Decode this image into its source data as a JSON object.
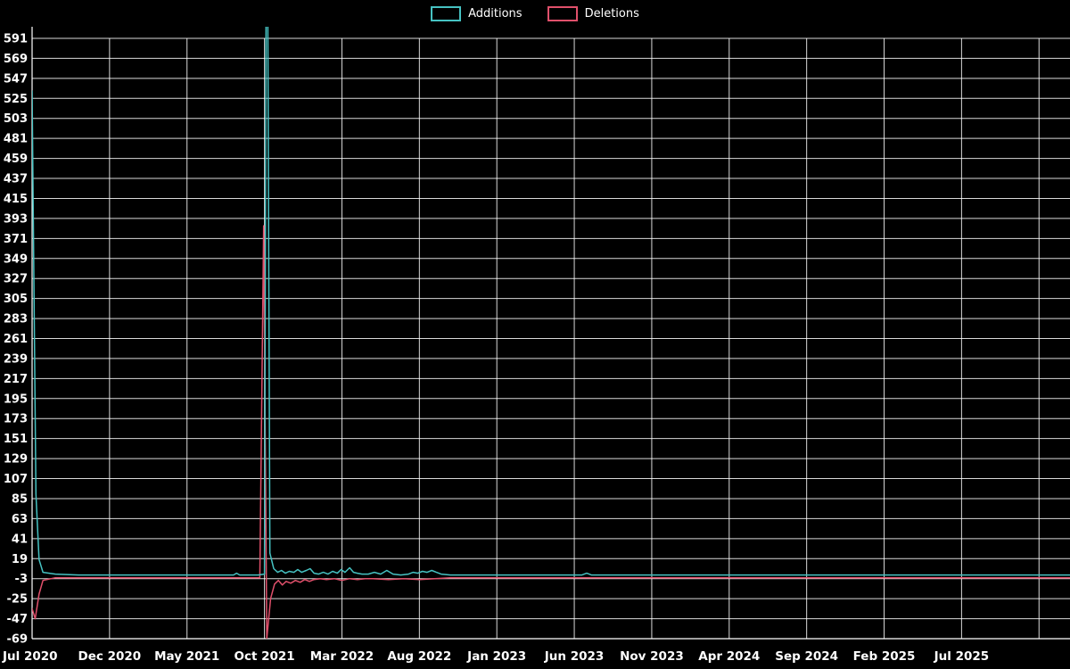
{
  "legend": {
    "additions_label": "Additions",
    "deletions_label": "Deletions"
  },
  "colors": {
    "background": "#000000",
    "grid": "#ffffff",
    "text": "#ffffff",
    "additions": "#46c2c2",
    "deletions": "#e0506b"
  },
  "chart_data": {
    "type": "line",
    "title": "",
    "xlabel": "",
    "ylabel": "",
    "legend_position": "top-center",
    "grid": true,
    "ylim": [
      -69,
      591
    ],
    "y_tick_step": 22,
    "y_ticks": [
      591,
      569,
      547,
      525,
      503,
      481,
      459,
      437,
      415,
      393,
      371,
      349,
      327,
      305,
      283,
      261,
      239,
      217,
      195,
      173,
      151,
      129,
      107,
      85,
      63,
      41,
      19,
      -3,
      -25,
      -47,
      -69
    ],
    "x_tick_labels": [
      "Jul 2020",
      "Dec 2020",
      "May 2021",
      "Oct 2021",
      "Mar 2022",
      "Aug 2022",
      "Jan 2023",
      "Jun 2023",
      "Nov 2023",
      "Apr 2024",
      "Sep 2024",
      "Feb 2025",
      "Jul 2025"
    ],
    "x_months_per_tick": 5,
    "xlim_months": [
      0,
      67
    ],
    "series": [
      {
        "name": "Additions",
        "color": "#46c2c2",
        "points": [
          [
            0,
            533
          ],
          [
            0.25,
            90
          ],
          [
            0.45,
            18
          ],
          [
            0.7,
            4
          ],
          [
            1.5,
            2
          ],
          [
            3,
            1
          ],
          [
            6,
            1
          ],
          [
            9,
            1
          ],
          [
            12,
            1
          ],
          [
            13,
            1
          ],
          [
            13.2,
            3
          ],
          [
            13.4,
            1
          ],
          [
            14.6,
            1
          ],
          [
            15,
            2
          ],
          [
            15.15,
            900
          ],
          [
            15.35,
            25
          ],
          [
            15.6,
            8
          ],
          [
            15.85,
            4
          ],
          [
            16.1,
            6
          ],
          [
            16.35,
            3
          ],
          [
            16.6,
            5
          ],
          [
            16.9,
            4
          ],
          [
            17.15,
            7
          ],
          [
            17.4,
            4
          ],
          [
            17.7,
            6
          ],
          [
            17.95,
            8
          ],
          [
            18.2,
            3
          ],
          [
            18.5,
            2
          ],
          [
            18.8,
            4
          ],
          [
            19.1,
            2
          ],
          [
            19.4,
            5
          ],
          [
            19.7,
            3
          ],
          [
            19.95,
            7
          ],
          [
            20.2,
            4
          ],
          [
            20.5,
            9
          ],
          [
            20.75,
            4
          ],
          [
            21,
            3
          ],
          [
            21.3,
            2
          ],
          [
            21.7,
            2
          ],
          [
            22.1,
            4
          ],
          [
            22.5,
            2
          ],
          [
            22.9,
            6
          ],
          [
            23.3,
            2
          ],
          [
            23.8,
            1
          ],
          [
            24.3,
            2
          ],
          [
            24.6,
            4
          ],
          [
            24.9,
            3
          ],
          [
            25.2,
            5
          ],
          [
            25.5,
            4
          ],
          [
            25.8,
            6
          ],
          [
            26.1,
            4
          ],
          [
            26.4,
            2
          ],
          [
            27,
            1
          ],
          [
            28,
            1
          ],
          [
            30,
            1
          ],
          [
            32,
            1
          ],
          [
            34,
            1
          ],
          [
            35.5,
            1
          ],
          [
            35.8,
            3
          ],
          [
            36.1,
            1
          ],
          [
            38,
            1
          ],
          [
            42,
            1
          ],
          [
            46,
            1
          ],
          [
            50,
            1
          ],
          [
            54,
            1
          ],
          [
            58,
            1
          ],
          [
            62,
            1
          ],
          [
            67,
            1
          ]
        ]
      },
      {
        "name": "Deletions",
        "color": "#e0506b",
        "points": [
          [
            0,
            -36
          ],
          [
            0.2,
            -47
          ],
          [
            0.45,
            -20
          ],
          [
            0.7,
            -5
          ],
          [
            1.5,
            -2
          ],
          [
            4,
            -2
          ],
          [
            8,
            -2
          ],
          [
            12,
            -2
          ],
          [
            14.7,
            -2
          ],
          [
            14.95,
            385
          ],
          [
            15.15,
            -69
          ],
          [
            15.4,
            -25
          ],
          [
            15.65,
            -9
          ],
          [
            15.9,
            -5
          ],
          [
            16.15,
            -10
          ],
          [
            16.4,
            -6
          ],
          [
            16.7,
            -8
          ],
          [
            17,
            -5
          ],
          [
            17.3,
            -7
          ],
          [
            17.6,
            -4
          ],
          [
            17.9,
            -6
          ],
          [
            18.2,
            -4
          ],
          [
            18.6,
            -3
          ],
          [
            19,
            -4
          ],
          [
            19.5,
            -3
          ],
          [
            20,
            -5
          ],
          [
            20.5,
            -3
          ],
          [
            21,
            -4
          ],
          [
            21.5,
            -3
          ],
          [
            22,
            -3
          ],
          [
            23,
            -4
          ],
          [
            24,
            -3
          ],
          [
            25,
            -4
          ],
          [
            26,
            -3
          ],
          [
            27,
            -2
          ],
          [
            30,
            -2
          ],
          [
            34,
            -2
          ],
          [
            38,
            -2
          ],
          [
            42,
            -2
          ],
          [
            46,
            -2
          ],
          [
            50,
            -2
          ],
          [
            54,
            -2
          ],
          [
            58,
            -2
          ],
          [
            62,
            -2
          ],
          [
            67,
            -2
          ]
        ]
      }
    ]
  }
}
